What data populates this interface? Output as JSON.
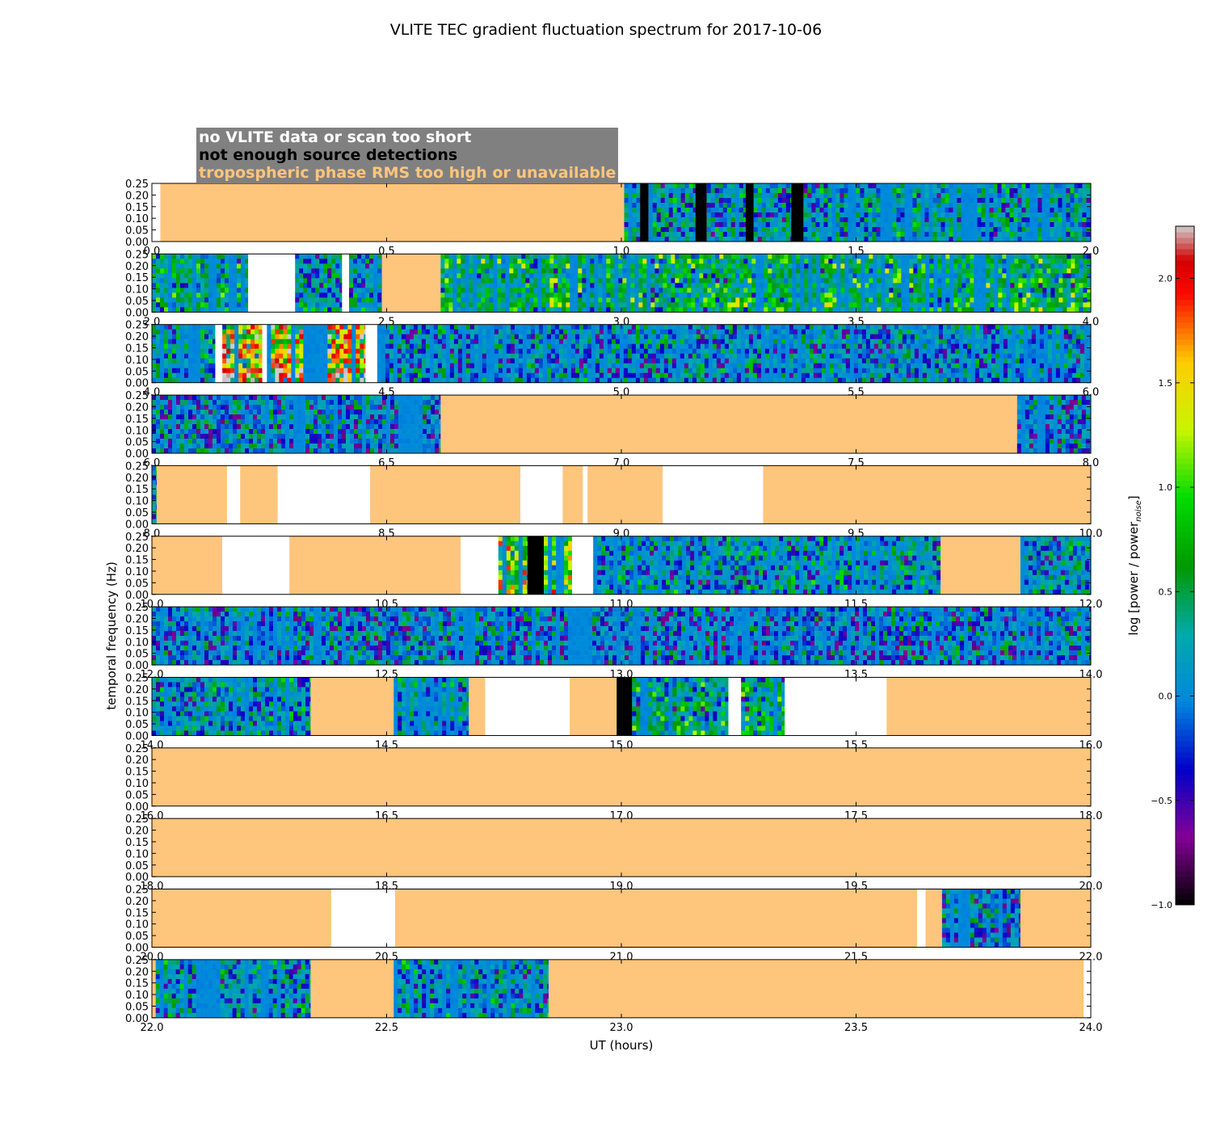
{
  "chart_data": {
    "type": "heatmap",
    "title": "VLITE TEC gradient fluctuation spectrum for 2017-10-06",
    "xlabel": "UT (hours)",
    "ylabel": "temporal frequency (Hz)",
    "ylim": [
      0,
      0.25
    ],
    "yticks": [
      "0.00",
      "0.05",
      "0.10",
      "0.15",
      "0.20",
      "0.25"
    ],
    "colorbar": {
      "label": "log [power / power",
      "label_sub": "noise",
      "label_end": "]",
      "range": [
        -1.0,
        2.25
      ],
      "ticks": [
        -1.0,
        -0.5,
        0.0,
        0.5,
        1.0,
        1.5,
        2.0
      ],
      "tick_labels": [
        "−1.0",
        "−0.5",
        "0.0",
        "0.5",
        "1.0",
        "1.5",
        "2.0"
      ]
    },
    "legend": [
      {
        "text": "no VLITE data or scan too short",
        "color": "#ffffff"
      },
      {
        "text": "not enough source detections",
        "color": "#000000"
      },
      {
        "text": "tropospheric phase RMS too high or unavailable",
        "color": "#fec57c"
      }
    ],
    "panels": [
      {
        "xlim": [
          0,
          2
        ],
        "xticks": [
          "0.0",
          "0.5",
          "1.0",
          "1.5",
          "2.0"
        ],
        "segments": [
          [
            0.0,
            0.018,
            "white"
          ],
          [
            0.018,
            1.006,
            "trop"
          ],
          [
            1.006,
            1.04,
            "spec",
            0.1
          ],
          [
            1.04,
            1.058,
            "nodet"
          ],
          [
            1.058,
            1.158,
            "spec",
            0.1
          ],
          [
            1.158,
            1.182,
            "nodet"
          ],
          [
            1.182,
            1.265,
            "spec",
            0.1
          ],
          [
            1.265,
            1.282,
            "nodet"
          ],
          [
            1.282,
            1.362,
            "spec",
            0.1
          ],
          [
            1.362,
            1.388,
            "nodet"
          ],
          [
            1.388,
            2.0,
            "spec",
            0.1
          ]
        ]
      },
      {
        "xlim": [
          2,
          4
        ],
        "xticks": [
          "2.0",
          "2.5",
          "3.0",
          "3.5",
          "4.0"
        ],
        "segments": [
          [
            2.0,
            2.205,
            "spec",
            0.2
          ],
          [
            2.205,
            2.305,
            "white"
          ],
          [
            2.305,
            2.405,
            "spec",
            0.1
          ],
          [
            2.405,
            2.42,
            "white"
          ],
          [
            2.42,
            2.49,
            "spec",
            0.1
          ],
          [
            2.49,
            2.615,
            "trop"
          ],
          [
            2.615,
            4.0,
            "spec",
            0.3
          ]
        ]
      },
      {
        "xlim": [
          4,
          6
        ],
        "xticks": [
          "4.0",
          "4.5",
          "5.0",
          "5.5",
          "6.0"
        ],
        "segments": [
          [
            4.0,
            4.135,
            "spec",
            0.1
          ],
          [
            4.135,
            4.15,
            "white"
          ],
          [
            4.15,
            4.235,
            "spec",
            0.9
          ],
          [
            4.235,
            4.245,
            "white"
          ],
          [
            4.245,
            4.455,
            "spec",
            0.9
          ],
          [
            4.455,
            4.48,
            "white"
          ],
          [
            4.48,
            6.0,
            "spec",
            0.05
          ]
        ]
      },
      {
        "xlim": [
          6,
          8
        ],
        "xticks": [
          "6.0",
          "6.5",
          "7.0",
          "7.5",
          "8.0"
        ],
        "segments": [
          [
            6.0,
            6.615,
            "spec",
            0.0
          ],
          [
            6.615,
            7.843,
            "trop"
          ],
          [
            7.843,
            8.0,
            "spec",
            0.0
          ]
        ]
      },
      {
        "xlim": [
          8,
          10
        ],
        "xticks": [
          "8.0",
          "8.5",
          "9.0",
          "9.5",
          "10.0"
        ],
        "segments": [
          [
            8.0,
            8.01,
            "spec",
            0.1
          ],
          [
            8.01,
            8.16,
            "trop"
          ],
          [
            8.16,
            8.188,
            "white"
          ],
          [
            8.188,
            8.268,
            "trop"
          ],
          [
            8.268,
            8.465,
            "white"
          ],
          [
            8.465,
            8.785,
            "trop"
          ],
          [
            8.785,
            8.875,
            "white"
          ],
          [
            8.875,
            8.918,
            "trop"
          ],
          [
            8.918,
            8.928,
            "white"
          ],
          [
            8.928,
            9.088,
            "trop"
          ],
          [
            9.088,
            9.302,
            "white"
          ],
          [
            9.302,
            10.0,
            "trop"
          ]
        ]
      },
      {
        "xlim": [
          10,
          12
        ],
        "xticks": [
          "10.0",
          "10.5",
          "11.0",
          "11.5",
          "12.0"
        ],
        "segments": [
          [
            10.0,
            10.15,
            "trop"
          ],
          [
            10.15,
            10.293,
            "white"
          ],
          [
            10.293,
            10.658,
            "trop"
          ],
          [
            10.658,
            10.738,
            "white"
          ],
          [
            10.738,
            10.8,
            "spec",
            0.6
          ],
          [
            10.8,
            10.835,
            "nodet"
          ],
          [
            10.835,
            10.895,
            "spec",
            0.6
          ],
          [
            10.895,
            10.94,
            "white"
          ],
          [
            10.94,
            11.68,
            "spec",
            0.1
          ],
          [
            11.68,
            11.85,
            "trop"
          ],
          [
            11.85,
            12.0,
            "spec",
            0.1
          ]
        ]
      },
      {
        "xlim": [
          12,
          14
        ],
        "xticks": [
          "12.0",
          "12.5",
          "13.0",
          "13.5",
          "14.0"
        ],
        "segments": [
          [
            12.0,
            14.0,
            "spec",
            0.0
          ]
        ]
      },
      {
        "xlim": [
          14,
          16
        ],
        "xticks": [
          "14.0",
          "14.5",
          "15.0",
          "15.5",
          "16.0"
        ],
        "segments": [
          [
            14.0,
            14.338,
            "spec",
            0.1
          ],
          [
            14.338,
            14.515,
            "trop"
          ],
          [
            14.515,
            14.675,
            "spec",
            0.1
          ],
          [
            14.675,
            14.71,
            "trop"
          ],
          [
            14.71,
            14.89,
            "white"
          ],
          [
            14.89,
            14.99,
            "trop"
          ],
          [
            14.99,
            15.023,
            "nodet"
          ],
          [
            15.023,
            15.228,
            "spec",
            0.2
          ],
          [
            15.228,
            15.255,
            "white"
          ],
          [
            15.255,
            15.348,
            "spec",
            0.2
          ],
          [
            15.348,
            15.358,
            "white"
          ],
          [
            15.358,
            15.565,
            "white"
          ],
          [
            15.565,
            16.0,
            "trop"
          ]
        ]
      },
      {
        "xlim": [
          16,
          18
        ],
        "xticks": [
          "16.0",
          "16.5",
          "17.0",
          "17.5",
          "18.0"
        ],
        "segments": [
          [
            16.0,
            18.0,
            "trop"
          ]
        ]
      },
      {
        "xlim": [
          18,
          20
        ],
        "xticks": [
          "18.0",
          "18.5",
          "19.0",
          "19.5",
          "20.0"
        ],
        "segments": [
          [
            18.0,
            20.0,
            "trop"
          ]
        ]
      },
      {
        "xlim": [
          20,
          22
        ],
        "xticks": [
          "20.0",
          "20.5",
          "21.0",
          "21.5",
          "22.0"
        ],
        "segments": [
          [
            20.0,
            20.382,
            "trop"
          ],
          [
            20.382,
            20.518,
            "white"
          ],
          [
            20.518,
            21.63,
            "trop"
          ],
          [
            21.63,
            21.648,
            "white"
          ],
          [
            21.648,
            21.683,
            "trop"
          ],
          [
            21.683,
            21.85,
            "spec",
            0.0
          ],
          [
            21.85,
            22.0,
            "trop"
          ]
        ]
      },
      {
        "xlim": [
          22,
          24
        ],
        "xticks": [
          "22.0",
          "22.5",
          "23.0",
          "23.5",
          "24.0"
        ],
        "segments": [
          [
            22.0,
            22.008,
            "trop"
          ],
          [
            22.008,
            22.338,
            "spec",
            0.1
          ],
          [
            22.338,
            22.515,
            "trop"
          ],
          [
            22.515,
            22.845,
            "spec",
            0.1
          ],
          [
            22.845,
            23.985,
            "trop"
          ],
          [
            23.985,
            24.0,
            "white"
          ]
        ]
      }
    ]
  }
}
